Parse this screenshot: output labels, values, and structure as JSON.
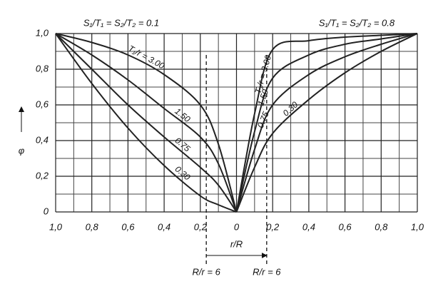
{
  "chart_data": {
    "type": "line",
    "annotations": [
      "S₁/T₁ = S₂/T₂ = 0.1",
      "S₁/T₁ = S₂/T₂ = 0.8"
    ],
    "y_label": "φ",
    "x_label": "r/R",
    "markers": [
      {
        "text": "R/r = 6",
        "x": -0.167
      },
      {
        "text": "R/r = 6",
        "x": 0.167
      }
    ],
    "xlim": [
      -1,
      1
    ],
    "ylim": [
      0,
      1
    ],
    "xticks": [
      {
        "value": -1,
        "label": "1,0"
      },
      {
        "value": -0.8,
        "label": "0,8"
      },
      {
        "value": -0.6,
        "label": "0,6"
      },
      {
        "value": -0.4,
        "label": "0,4"
      },
      {
        "value": -0.2,
        "label": "0,2"
      },
      0,
      {
        "value": 0.2,
        "label": "0,2"
      },
      {
        "value": 0.4,
        "label": "0,4"
      },
      {
        "value": 0.6,
        "label": "0,6"
      },
      {
        "value": 0.8,
        "label": "0,8"
      },
      {
        "value": 1,
        "label": "1,0"
      }
    ],
    "yticks": [
      0,
      {
        "value": 0.2,
        "label": "0,2"
      },
      {
        "value": 0.4,
        "label": "0,4"
      },
      {
        "value": 0.6,
        "label": "0,6"
      },
      {
        "value": 0.8,
        "label": "0,8"
      },
      {
        "value": 1,
        "label": "1,0"
      }
    ],
    "grid": true,
    "series": [
      {
        "name": "T₁/r = 3.00",
        "color": "#222",
        "x": [
          -1,
          -0.8,
          -0.6,
          -0.4,
          -0.2,
          -0.1,
          0
        ],
        "values": [
          1,
          0.95,
          0.88,
          0.77,
          0.6,
          0.38,
          0
        ]
      },
      {
        "name": "1.50",
        "color": "#222",
        "x": [
          -1,
          -0.8,
          -0.6,
          -0.4,
          -0.2,
          -0.1,
          0
        ],
        "values": [
          1,
          0.88,
          0.74,
          0.58,
          0.42,
          0.27,
          0
        ]
      },
      {
        "name": "0.75",
        "color": "#222",
        "x": [
          -1,
          -0.8,
          -0.6,
          -0.4,
          -0.2,
          -0.1,
          0
        ],
        "values": [
          1,
          0.8,
          0.6,
          0.42,
          0.25,
          0.15,
          0
        ]
      },
      {
        "name": "0.30",
        "color": "#222",
        "x": [
          -1,
          -0.8,
          -0.6,
          -0.4,
          -0.2,
          -0.1,
          0
        ],
        "values": [
          1,
          0.72,
          0.47,
          0.26,
          0.09,
          0.04,
          0
        ]
      },
      {
        "name": "T₁/r = 3.00",
        "color": "#222",
        "x": [
          0,
          0.1,
          0.2,
          0.4,
          0.6,
          0.8,
          1
        ],
        "values": [
          0,
          0.55,
          0.91,
          0.96,
          0.98,
          0.99,
          1
        ]
      },
      {
        "name": "1.50",
        "color": "#222",
        "x": [
          0,
          0.1,
          0.2,
          0.4,
          0.6,
          0.8,
          1
        ],
        "values": [
          0,
          0.45,
          0.75,
          0.88,
          0.94,
          0.97,
          1
        ]
      },
      {
        "name": "0.75",
        "color": "#222",
        "x": [
          0,
          0.1,
          0.2,
          0.4,
          0.6,
          0.8,
          1
        ],
        "values": [
          0,
          0.35,
          0.6,
          0.77,
          0.87,
          0.94,
          1
        ]
      },
      {
        "name": "0.30",
        "color": "#222",
        "x": [
          0,
          0.1,
          0.2,
          0.4,
          0.6,
          0.8,
          1
        ],
        "values": [
          0,
          0.25,
          0.44,
          0.63,
          0.78,
          0.9,
          1
        ]
      }
    ]
  }
}
